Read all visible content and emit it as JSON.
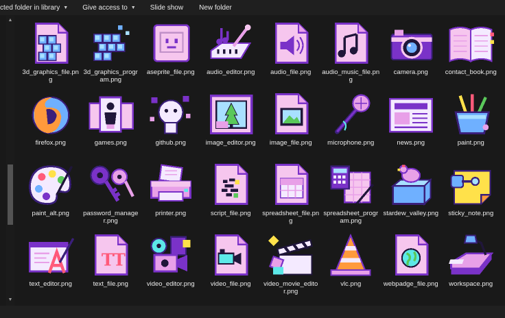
{
  "toolbar": {
    "include_label": "cted folder in library",
    "share_label": "Give access to",
    "slideshow_label": "Slide show",
    "newfolder_label": "New folder"
  },
  "files": [
    {
      "name": "3d_graphics_file.png",
      "icon": "3d-cubes-document-icon"
    },
    {
      "name": "3d_graphics_program.png",
      "icon": "3d-cubes-icon"
    },
    {
      "name": "aseprite_file.png",
      "icon": "aseprite-face-icon"
    },
    {
      "name": "audio_editor.png",
      "icon": "music-keyboard-icon"
    },
    {
      "name": "audio_file.png",
      "icon": "speaker-document-icon"
    },
    {
      "name": "audio_music_file.png",
      "icon": "music-notes-document-icon"
    },
    {
      "name": "camera.png",
      "icon": "camera-icon"
    },
    {
      "name": "contact_book.png",
      "icon": "open-book-icon"
    },
    {
      "name": "firefox.png",
      "icon": "firefox-icon"
    },
    {
      "name": "games.png",
      "icon": "playing-cards-icon"
    },
    {
      "name": "github.png",
      "icon": "github-octocat-icon"
    },
    {
      "name": "image_editor.png",
      "icon": "framed-picture-icon"
    },
    {
      "name": "image_file.png",
      "icon": "picture-document-icon"
    },
    {
      "name": "microphone.png",
      "icon": "microphone-icon"
    },
    {
      "name": "news.png",
      "icon": "newspaper-icon"
    },
    {
      "name": "paint.png",
      "icon": "paint-brushes-cup-icon"
    },
    {
      "name": "paint_alt.png",
      "icon": "paint-palette-icon"
    },
    {
      "name": "password_manager.png",
      "icon": "keys-icon"
    },
    {
      "name": "printer.png",
      "icon": "printer-icon"
    },
    {
      "name": "script_file.png",
      "icon": "script-document-icon"
    },
    {
      "name": "spreadsheet_file.png",
      "icon": "spreadsheet-document-icon"
    },
    {
      "name": "spreadsheet_program.png",
      "icon": "calculator-sheet-icon"
    },
    {
      "name": "stardew_valley.png",
      "icon": "chicken-box-icon"
    },
    {
      "name": "sticky_note.png",
      "icon": "sticky-note-icon"
    },
    {
      "name": "text_editor.png",
      "icon": "text-editor-pen-icon"
    },
    {
      "name": "text_file.png",
      "icon": "text-tt-document-icon"
    },
    {
      "name": "video_editor.png",
      "icon": "video-camera-reels-icon"
    },
    {
      "name": "video_file.png",
      "icon": "video-camera-document-icon"
    },
    {
      "name": "video_movie_editor.png",
      "icon": "clapperboard-icon"
    },
    {
      "name": "vlc.png",
      "icon": "traffic-cone-icon"
    },
    {
      "name": "webpadge_file.png",
      "icon": "globe-document-icon"
    },
    {
      "name": "workspace.png",
      "icon": "desk-lamp-icon"
    }
  ]
}
